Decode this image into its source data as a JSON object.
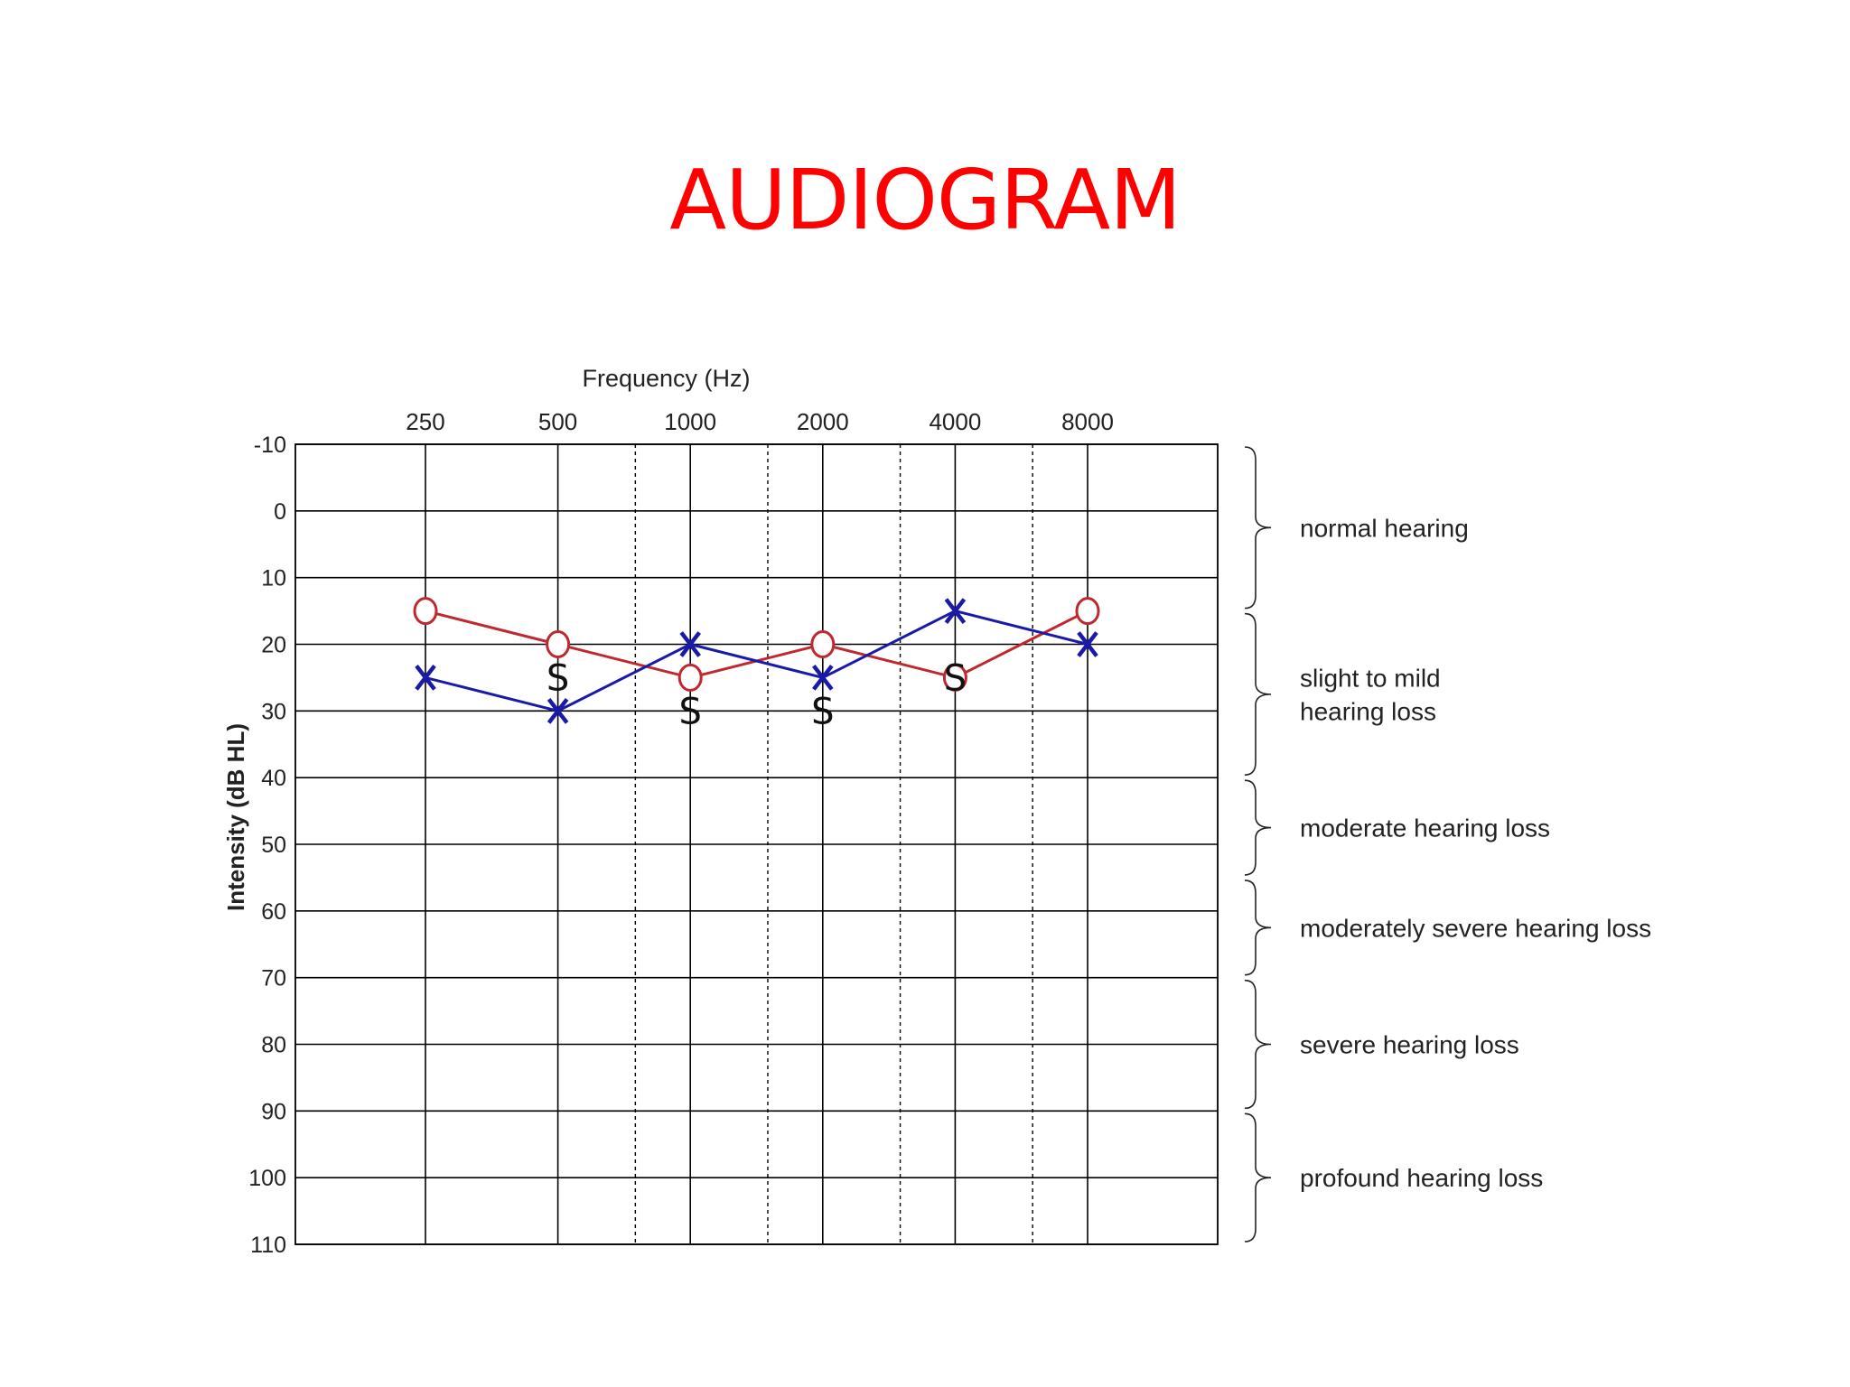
{
  "slide": {
    "title": "AUDIOGRAM"
  },
  "colors": {
    "title": "#ff0000",
    "air_conduction_right": "#c0282f",
    "air_conduction_left": "#1a1aa8",
    "sound_field": "#111111",
    "grid": "#000000"
  },
  "chart_data": {
    "type": "line",
    "title": "",
    "xlabel": "Frequency (Hz)",
    "ylabel": "Intensity (dB HL)",
    "x_scale": "log2",
    "x_ticks": [
      250,
      500,
      1000,
      2000,
      4000,
      8000
    ],
    "x_tick_labels": [
      "250",
      "500",
      "1000",
      "2000",
      "4000",
      "8000"
    ],
    "dashed_gridlines_at": [
      750,
      1500,
      3000,
      6000
    ],
    "y_inverted": true,
    "ylim": [
      -10,
      110
    ],
    "y_ticks": [
      -10,
      0,
      10,
      20,
      30,
      40,
      50,
      60,
      70,
      80,
      90,
      100,
      110
    ],
    "y_tick_labels": [
      "-10",
      "0",
      "10",
      "20",
      "30",
      "40",
      "50",
      "60",
      "70",
      "80",
      "90",
      "100",
      "110"
    ],
    "grid": true,
    "series": [
      {
        "marker": "O",
        "color": "#c0282f",
        "connected": true,
        "x": [
          250,
          500,
          1000,
          2000,
          4000,
          8000
        ],
        "y": [
          15,
          20,
          25,
          20,
          25,
          15
        ]
      },
      {
        "marker": "X",
        "color": "#1a1aa8",
        "connected": true,
        "x": [
          250,
          500,
          1000,
          2000,
          4000,
          8000
        ],
        "y": [
          25,
          30,
          20,
          25,
          15,
          20
        ]
      },
      {
        "marker": "S",
        "color": "#111111",
        "connected": false,
        "x": [
          500,
          1000,
          2000,
          4000
        ],
        "y": [
          25,
          30,
          30,
          25
        ]
      }
    ],
    "annotations": [
      {
        "lines": [
          "normal hearing"
        ],
        "from": -10,
        "to": 15
      },
      {
        "lines": [
          "slight to mild",
          "hearing loss"
        ],
        "from": 15,
        "to": 40
      },
      {
        "lines": [
          "moderate hearing loss"
        ],
        "from": 40,
        "to": 55
      },
      {
        "lines": [
          "moderately severe hearing loss"
        ],
        "from": 55,
        "to": 70
      },
      {
        "lines": [
          "severe hearing loss"
        ],
        "from": 70,
        "to": 90
      },
      {
        "lines": [
          "profound hearing loss"
        ],
        "from": 90,
        "to": 110
      }
    ]
  }
}
